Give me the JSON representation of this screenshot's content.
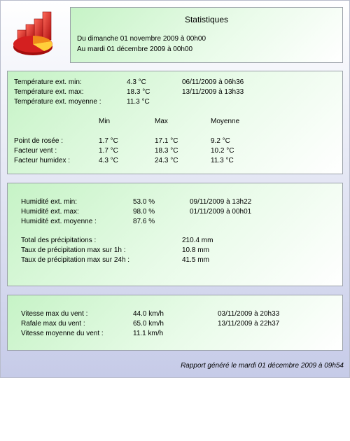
{
  "header": {
    "title": "Statistiques",
    "period_from": "Du dimanche 01 novembre 2009 à 00h00",
    "period_to": "Au mardi 01 décembre 2009 à 00h00"
  },
  "temperature": {
    "rows": [
      {
        "label": "Température ext. min:",
        "value": "4.3 °C",
        "date": "06/11/2009 à 06h36"
      },
      {
        "label": "Température ext. max:",
        "value": "18.3 °C",
        "date": "13/11/2009 à 13h33"
      },
      {
        "label": "Température ext. moyenne :",
        "value": "11.3 °C",
        "date": ""
      }
    ],
    "columns": {
      "min": "Min",
      "max": "Max",
      "avg": "Moyenne"
    },
    "derived": [
      {
        "label": "Point de rosée :",
        "min": "1.7 °C",
        "max": "17.1 °C",
        "avg": "9.2 °C"
      },
      {
        "label": "Facteur vent :",
        "min": "1.7 °C",
        "max": "18.3 °C",
        "avg": "10.2 °C"
      },
      {
        "label": "Facteur humidex :",
        "min": "4.3 °C",
        "max": "24.3 °C",
        "avg": "11.3 °C"
      }
    ]
  },
  "humidity": {
    "rows": [
      {
        "label": "Humidité ext. min:",
        "value": "53.0 %",
        "date": "09/11/2009 à 13h22"
      },
      {
        "label": "Humidité ext. max:",
        "value": "98.0 %",
        "date": "01/11/2009 à 00h01"
      },
      {
        "label": "Humidité ext. moyenne :",
        "value": "87.6 %",
        "date": ""
      }
    ],
    "rain": [
      {
        "label": "Total des précipitations :",
        "value": "210.4 mm"
      },
      {
        "label": "Taux de précipitation max sur 1h :",
        "value": "10.8 mm"
      },
      {
        "label": "Taux de précipitation max sur 24h :",
        "value": "41.5 mm"
      }
    ]
  },
  "wind": {
    "rows": [
      {
        "label": "Vitesse max du vent :",
        "value": "44.0 km/h",
        "date": "03/11/2009 à 20h33"
      },
      {
        "label": "Rafale max du vent :",
        "value": "65.0 km/h",
        "date": "13/11/2009 à 22h37"
      },
      {
        "label": "Vitesse moyenne du vent :",
        "value": "11.1 km/h",
        "date": ""
      }
    ]
  },
  "footer": "Rapport généré le mardi 01 décembre 2009 à 09h54",
  "colors": {
    "panel_green": "#c6f3c6",
    "frame_blue": "#c6cbe8",
    "logo_red": "#d42020"
  },
  "logo_icon": "chart-pie-logo-icon"
}
